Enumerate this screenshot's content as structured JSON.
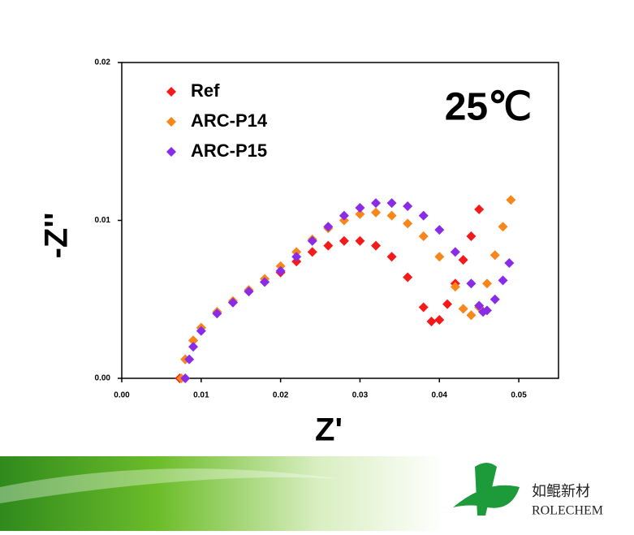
{
  "chart_data": {
    "type": "scatter",
    "annotation": "25℃",
    "xlabel": "Z'",
    "ylabel": "-Z''",
    "xlim": [
      0,
      0.055
    ],
    "ylim": [
      0,
      0.02
    ],
    "xticks": [
      {
        "value": 0,
        "label": "0.00"
      },
      {
        "value": 0.01,
        "label": "0.01"
      },
      {
        "value": 0.02,
        "label": "0.02"
      },
      {
        "value": 0.03,
        "label": "0.03"
      },
      {
        "value": 0.04,
        "label": "0.04"
      },
      {
        "value": 0.05,
        "label": "0.05"
      }
    ],
    "yticks": [
      {
        "value": 0,
        "label": "0.00"
      },
      {
        "value": 0.01,
        "label": "0.01"
      },
      {
        "value": 0.02,
        "label": "0.02"
      }
    ],
    "legend": "upper left",
    "series": [
      {
        "name": "Ref",
        "color": "#f51a1a",
        "x": [
          0.0073,
          0.008,
          0.009,
          0.01,
          0.012,
          0.014,
          0.016,
          0.018,
          0.02,
          0.022,
          0.024,
          0.026,
          0.028,
          0.03,
          0.032,
          0.034,
          0.036,
          0.038,
          0.039,
          0.04,
          0.041,
          0.042,
          0.043,
          0.044,
          0.045
        ],
        "values": [
          0.0,
          0.0012,
          0.0024,
          0.0032,
          0.0042,
          0.0048,
          0.0055,
          0.0061,
          0.0067,
          0.0074,
          0.008,
          0.0084,
          0.0087,
          0.0087,
          0.0084,
          0.0077,
          0.0064,
          0.0045,
          0.0036,
          0.0037,
          0.0047,
          0.006,
          0.0075,
          0.009,
          0.0107
        ]
      },
      {
        "name": "ARC-P14",
        "color": "#f8861a",
        "x": [
          0.0075,
          0.008,
          0.009,
          0.01,
          0.012,
          0.014,
          0.016,
          0.018,
          0.02,
          0.022,
          0.024,
          0.026,
          0.028,
          0.03,
          0.032,
          0.034,
          0.036,
          0.038,
          0.04,
          0.042,
          0.043,
          0.044,
          0.045,
          0.046,
          0.047,
          0.048,
          0.049
        ],
        "values": [
          0.0,
          0.0012,
          0.0024,
          0.0032,
          0.0042,
          0.0049,
          0.0056,
          0.0063,
          0.0071,
          0.008,
          0.0088,
          0.0095,
          0.01,
          0.0104,
          0.0105,
          0.0103,
          0.0098,
          0.009,
          0.0077,
          0.0058,
          0.0044,
          0.004,
          0.0045,
          0.006,
          0.0078,
          0.0096,
          0.0113
        ]
      },
      {
        "name": "ARC-P15",
        "color": "#8a2be8",
        "x": [
          0.008,
          0.0085,
          0.009,
          0.01,
          0.012,
          0.014,
          0.016,
          0.018,
          0.02,
          0.022,
          0.024,
          0.026,
          0.028,
          0.03,
          0.032,
          0.034,
          0.036,
          0.038,
          0.04,
          0.042,
          0.044,
          0.045,
          0.0455,
          0.046,
          0.047,
          0.048,
          0.0488
        ],
        "values": [
          0.0,
          0.0012,
          0.002,
          0.003,
          0.0041,
          0.0048,
          0.0055,
          0.0061,
          0.0068,
          0.0077,
          0.0087,
          0.0096,
          0.0103,
          0.0108,
          0.0111,
          0.0111,
          0.0109,
          0.0103,
          0.0094,
          0.008,
          0.006,
          0.0046,
          0.0042,
          0.0043,
          0.005,
          0.0062,
          0.0073
        ]
      }
    ]
  },
  "logo": {
    "cn": "如鲲新材",
    "en": "ROLECHEM"
  }
}
